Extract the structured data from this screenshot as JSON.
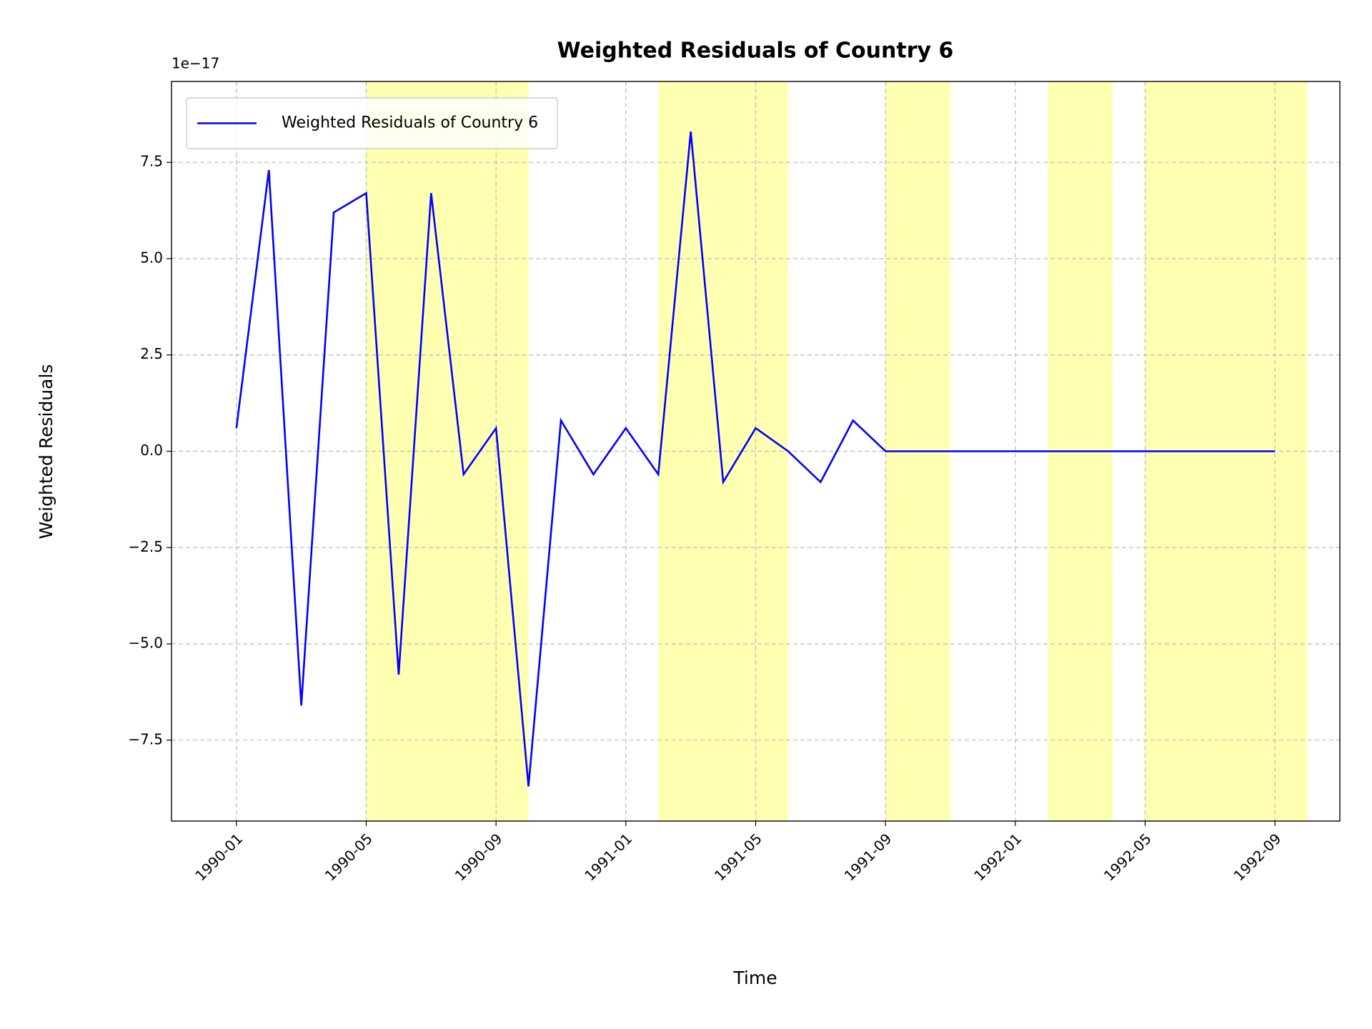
{
  "chart_data": {
    "type": "line",
    "title": "Weighted Residuals of Country 6",
    "xlabel": "Time",
    "ylabel": "Weighted Residuals",
    "y_offset_label": "1e−17",
    "x": [
      "1990-01",
      "1990-02",
      "1990-03",
      "1990-04",
      "1990-05",
      "1990-06",
      "1990-07",
      "1990-08",
      "1990-09",
      "1990-10",
      "1990-11",
      "1990-12",
      "1991-01",
      "1991-02",
      "1991-03",
      "1991-04",
      "1991-05",
      "1991-06",
      "1991-07",
      "1991-08",
      "1991-09",
      "1991-10",
      "1991-11",
      "1991-12",
      "1992-01",
      "1992-02",
      "1992-03",
      "1992-04",
      "1992-05",
      "1992-06",
      "1992-07",
      "1992-08",
      "1992-09"
    ],
    "series": [
      {
        "name": "Weighted Residuals of Country 6",
        "color": "#0000ff",
        "values": [
          0.6,
          7.3,
          -6.6,
          6.2,
          6.7,
          -5.8,
          6.7,
          -0.6,
          0.6,
          -8.7,
          0.8,
          -0.6,
          0.6,
          -0.6,
          8.3,
          -0.8,
          0.6,
          0,
          -0.8,
          0.8,
          0,
          0,
          0,
          0,
          0,
          0,
          0,
          0,
          0,
          0,
          0,
          0,
          0
        ]
      }
    ],
    "spans": [
      [
        "1990-05",
        "1990-10"
      ],
      [
        "1991-02",
        "1991-06"
      ],
      [
        "1991-09",
        "1991-11"
      ],
      [
        "1992-02",
        "1992-04"
      ],
      [
        "1992-05",
        "1992-07"
      ],
      [
        "1992-07",
        "1992-10"
      ]
    ],
    "span_color": "#ffff00",
    "xlim": [
      "1989-11",
      "1992-11"
    ],
    "xticks": [
      "1990-01",
      "1990-05",
      "1990-09",
      "1991-01",
      "1991-05",
      "1991-09",
      "1992-01",
      "1992-05",
      "1992-09"
    ],
    "ylim": [
      -9.6,
      9.6
    ],
    "yticks": [
      {
        "value": -7.5,
        "label": "−7.5"
      },
      {
        "value": -5,
        "label": "−5.0"
      },
      {
        "value": -2.5,
        "label": "−2.5"
      },
      {
        "value": 0,
        "label": "0.0"
      },
      2.5,
      {
        "value": 5,
        "label": "5.0"
      },
      7.5
    ],
    "grid": true,
    "legend": "upper left"
  }
}
